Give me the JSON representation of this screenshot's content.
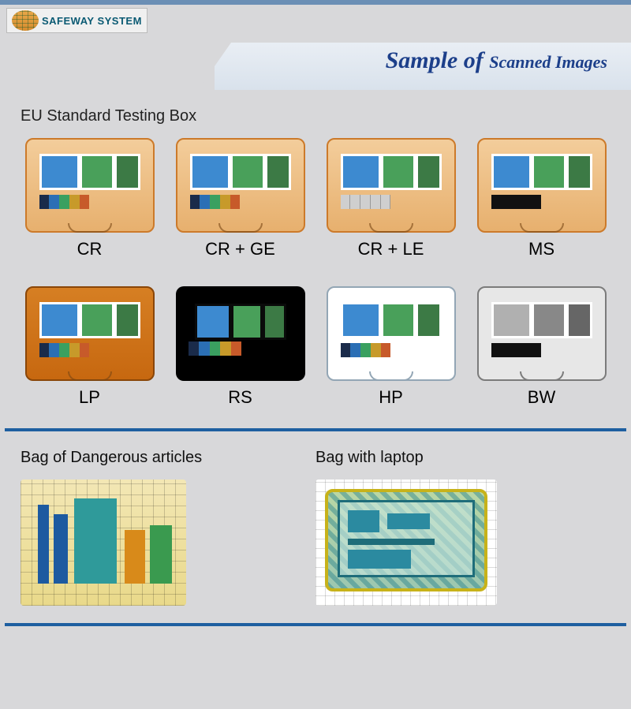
{
  "brand": {
    "name": "SAFEWAY SYSTEM"
  },
  "title": {
    "main": "Sample of",
    "sub": "Scanned Images",
    "color": "#1c3f8a"
  },
  "sections": {
    "testing": "EU Standard Testing Box",
    "bag1": "Bag of Dangerous articles",
    "bag2": "Bag with laptop"
  },
  "boxes": [
    {
      "label": "CR",
      "case": "orange",
      "strip": "rainbow"
    },
    {
      "label": "CR + GE",
      "case": "orange",
      "strip": "rainbow"
    },
    {
      "label": "CR + LE",
      "case": "orange",
      "strip": "silver"
    },
    {
      "label": "MS",
      "case": "orange",
      "strip": "black"
    },
    {
      "label": "LP",
      "case": "dark-orange",
      "strip": "rainbow"
    },
    {
      "label": "RS",
      "case": "black",
      "strip": "rainbow"
    },
    {
      "label": "HP",
      "case": "white",
      "strip": "rainbow"
    },
    {
      "label": "BW",
      "case": "gray",
      "strip": "black"
    }
  ],
  "palette": {
    "page_bg": "#d8d8da",
    "divider": "#1e5fa0",
    "title_band_dark": "#1c3d72",
    "title_band_light": "#e9eef4"
  }
}
